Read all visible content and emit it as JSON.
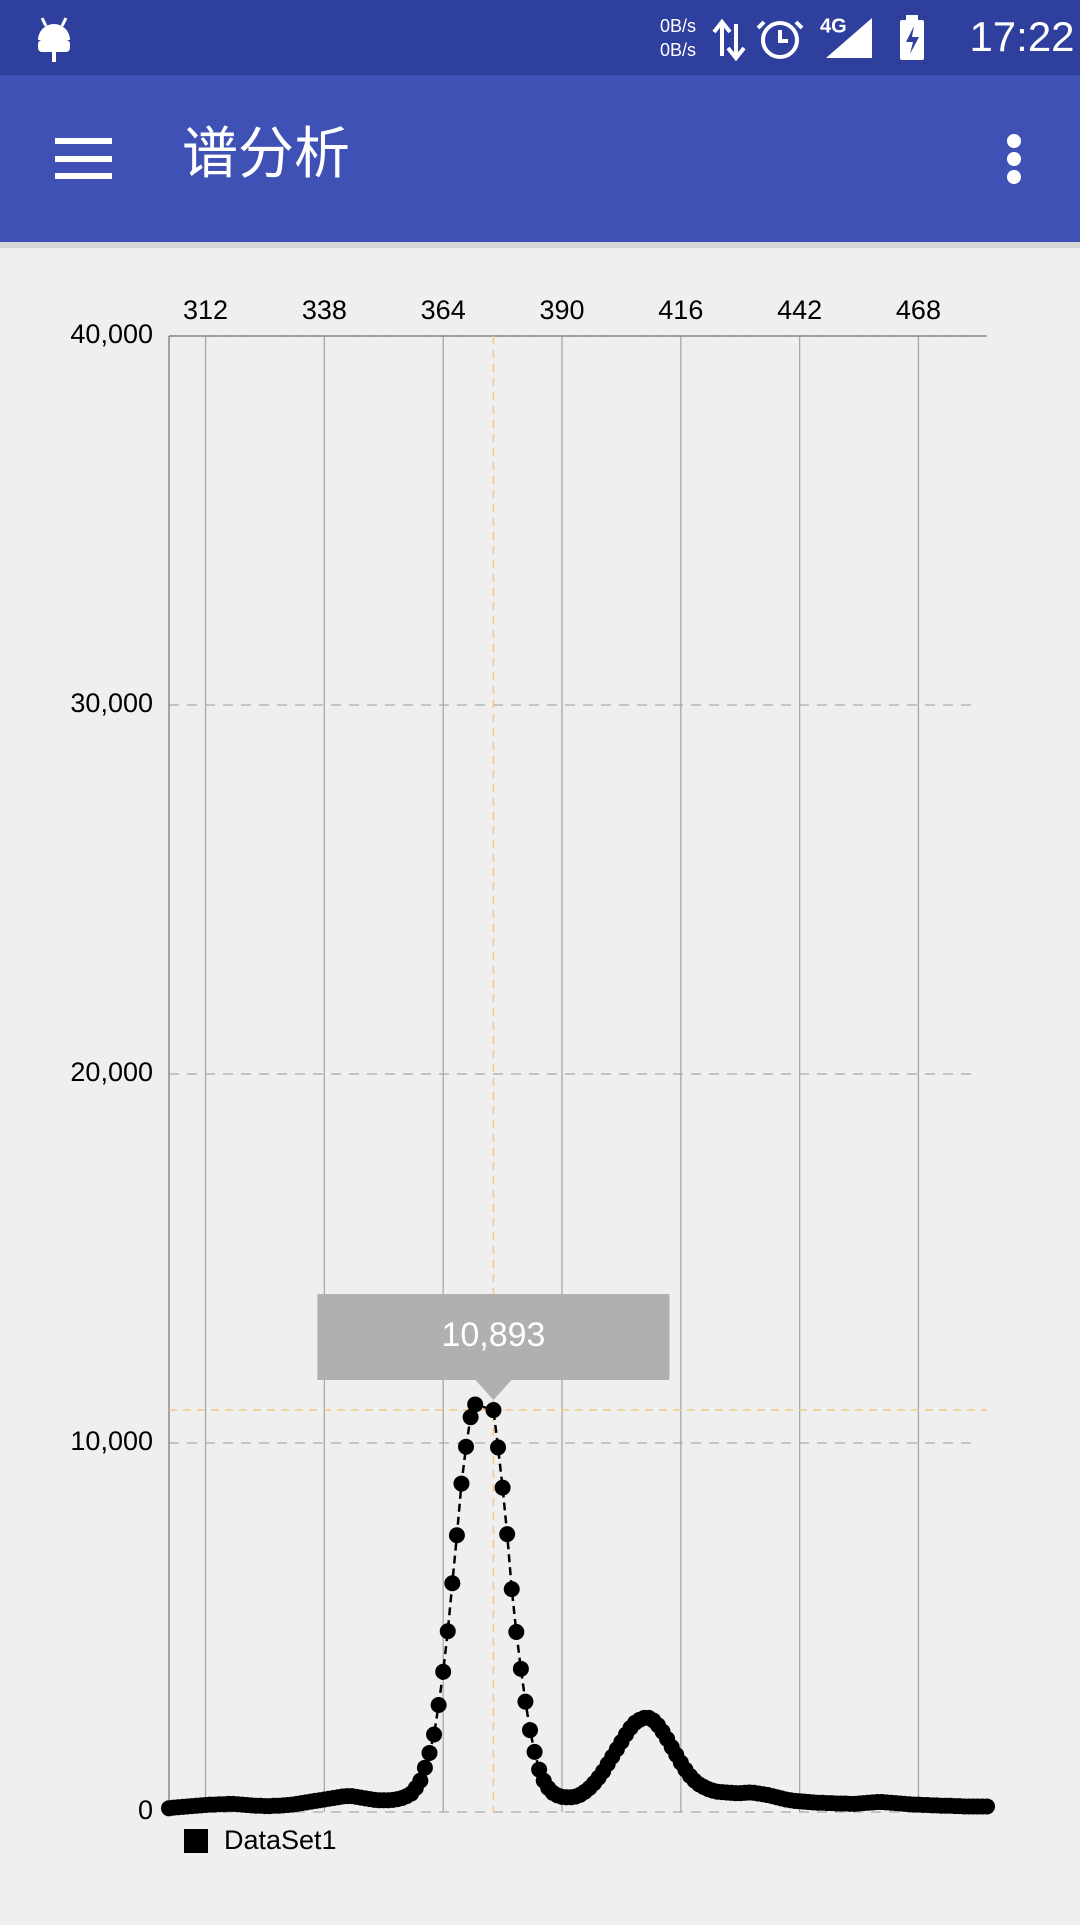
{
  "status_bar": {
    "net_up": "0B/s",
    "net_down": "0B/s",
    "network": "4G",
    "time": "17:22"
  },
  "app_bar": {
    "title": "谱分析"
  },
  "chart_data": {
    "type": "scatter-line",
    "x": [
      304,
      305,
      306,
      307,
      308,
      309,
      310,
      311,
      312,
      313,
      314,
      315,
      316,
      317,
      318,
      319,
      320,
      321,
      322,
      323,
      324,
      325,
      326,
      327,
      328,
      329,
      330,
      331,
      332,
      333,
      334,
      335,
      336,
      337,
      338,
      339,
      340,
      341,
      342,
      343,
      344,
      345,
      346,
      347,
      348,
      349,
      350,
      351,
      352,
      353,
      354,
      355,
      356,
      357,
      358,
      359,
      360,
      361,
      362,
      363,
      364,
      365,
      366,
      367,
      368,
      369,
      370,
      371,
      375,
      376,
      377,
      378,
      379,
      380,
      381,
      382,
      383,
      384,
      385,
      386,
      387,
      388,
      389,
      390,
      391,
      392,
      393,
      394,
      395,
      396,
      397,
      398,
      399,
      400,
      401,
      402,
      403,
      404,
      405,
      406,
      407,
      408,
      409,
      410,
      411,
      412,
      413,
      414,
      415,
      416,
      417,
      418,
      419,
      420,
      421,
      422,
      423,
      424,
      425,
      426,
      427,
      428,
      429,
      430,
      431,
      432,
      433,
      434,
      435,
      436,
      437,
      438,
      439,
      440,
      441,
      442,
      443,
      444,
      445,
      446,
      447,
      448,
      449,
      450,
      451,
      452,
      453,
      454,
      455,
      456,
      457,
      458,
      459,
      460,
      461,
      462,
      463,
      464,
      465,
      466,
      467,
      468,
      469,
      470,
      471,
      472,
      473,
      474,
      475,
      476,
      477,
      478,
      479,
      480,
      481,
      482,
      483
    ],
    "series": [
      {
        "name": "DataSet1",
        "color": "#000000",
        "values": [
          100,
          120,
          130,
          140,
          150,
          160,
          170,
          180,
          190,
          200,
          200,
          210,
          210,
          220,
          220,
          210,
          200,
          190,
          180,
          170,
          170,
          160,
          160,
          170,
          170,
          180,
          190,
          200,
          220,
          240,
          260,
          280,
          300,
          320,
          340,
          360,
          380,
          400,
          420,
          430,
          430,
          410,
          390,
          370,
          350,
          330,
          320,
          320,
          320,
          330,
          350,
          380,
          430,
          500,
          650,
          850,
          1200,
          1600,
          2100,
          2900,
          3800,
          4900,
          6200,
          7500,
          8900,
          9900,
          10700,
          11045,
          10893,
          9880,
          8790,
          7530,
          6040,
          4880,
          3880,
          2990,
          2220,
          1630,
          1150,
          850,
          650,
          520,
          450,
          410,
          400,
          400,
          420,
          470,
          550,
          650,
          780,
          930,
          1100,
          1300,
          1500,
          1700,
          1900,
          2100,
          2280,
          2420,
          2500,
          2550,
          2550,
          2480,
          2350,
          2180,
          1980,
          1760,
          1550,
          1340,
          1150,
          980,
          850,
          750,
          680,
          620,
          580,
          550,
          540,
          530,
          520,
          510,
          510,
          520,
          530,
          520,
          500,
          480,
          460,
          430,
          400,
          370,
          340,
          320,
          300,
          290,
          280,
          270,
          260,
          250,
          250,
          240,
          240,
          230,
          230,
          230,
          220,
          220,
          230,
          240,
          250,
          260,
          270,
          270,
          260,
          250,
          240,
          230,
          220,
          210,
          200,
          200,
          190,
          190,
          180,
          180,
          170,
          170,
          170,
          160,
          160,
          150,
          150,
          150,
          150,
          150,
          150
        ]
      }
    ],
    "xlim": [
      304,
      483
    ],
    "xticks": [
      312,
      338,
      364,
      390,
      416,
      442,
      468
    ],
    "ylim": [
      0,
      40000
    ],
    "yticks": [
      0,
      {
        "value": 10000,
        "label": "10,000"
      },
      {
        "value": 20000,
        "label": "20,000"
      },
      {
        "value": 30000,
        "label": "30,000"
      },
      {
        "value": 40000,
        "label": "40,000"
      }
    ],
    "highlight": {
      "x": 375,
      "value": 10893,
      "label": "10,893"
    },
    "grid": true
  }
}
